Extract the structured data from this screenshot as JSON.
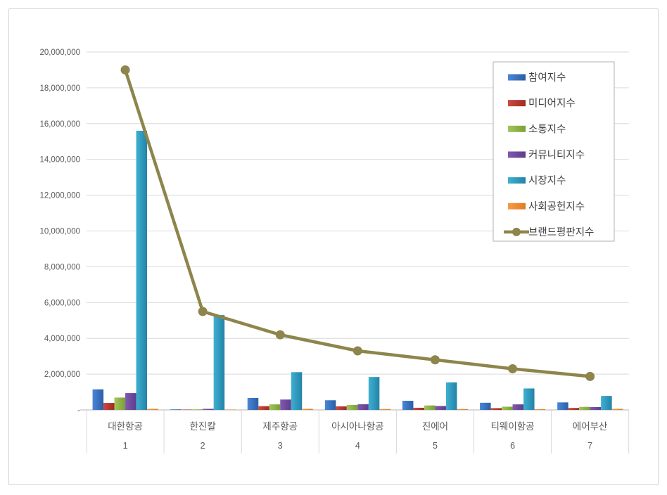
{
  "chart_data": {
    "type": "bar",
    "title": "",
    "categories": [
      "대한항공",
      "한진칼",
      "제주항공",
      "아시아나항공",
      "진에어",
      "티웨이항공",
      "에어부산"
    ],
    "category_ranks": [
      "1",
      "2",
      "3",
      "4",
      "5",
      "6",
      "7"
    ],
    "bar_series": [
      {
        "name": "참여지수",
        "color_light": "#4a86d8",
        "color_dark": "#2b5fa5",
        "values": [
          1150000,
          30000,
          670000,
          540000,
          510000,
          400000,
          420000
        ]
      },
      {
        "name": "미디어지수",
        "color_light": "#cc4a41",
        "color_dark": "#9e2b23",
        "values": [
          390000,
          20000,
          210000,
          200000,
          120000,
          100000,
          110000
        ]
      },
      {
        "name": "소통지수",
        "color_light": "#a3c65c",
        "color_dark": "#7a9f35",
        "values": [
          690000,
          30000,
          310000,
          280000,
          250000,
          180000,
          170000
        ]
      },
      {
        "name": "커뮤니티지수",
        "color_light": "#8159ae",
        "color_dark": "#5f3d8c",
        "values": [
          940000,
          60000,
          580000,
          320000,
          220000,
          310000,
          160000
        ]
      },
      {
        "name": "시장지수",
        "color_light": "#3fb0d0",
        "color_dark": "#2383a8",
        "values": [
          15600000,
          5300000,
          2110000,
          1840000,
          1540000,
          1200000,
          780000
        ]
      },
      {
        "name": "사회공헌지수",
        "color_light": "#f49c42",
        "color_dark": "#e07b1f",
        "values": [
          60000,
          20000,
          60000,
          50000,
          50000,
          40000,
          60000
        ]
      }
    ],
    "line_series": {
      "name": "브랜드평판지수",
      "color": "#8d854b",
      "values": [
        19000000,
        5500000,
        4200000,
        3300000,
        2800000,
        2300000,
        1870000
      ]
    },
    "y_axis": {
      "min": 0,
      "max": 20000000,
      "tick_interval": 2000000,
      "zero_label": "-"
    },
    "legend_position": "right-inside",
    "grid": true
  },
  "style": {
    "grid_color": "#d9d9d9",
    "axis_color": "#c3c3c3",
    "tick_text_color": "#595959",
    "category_text_color": "#595959",
    "legend_text_color": "#404040",
    "legend_border_color": "#bdbdbd",
    "frame_border_color": "#d4d4d4"
  }
}
